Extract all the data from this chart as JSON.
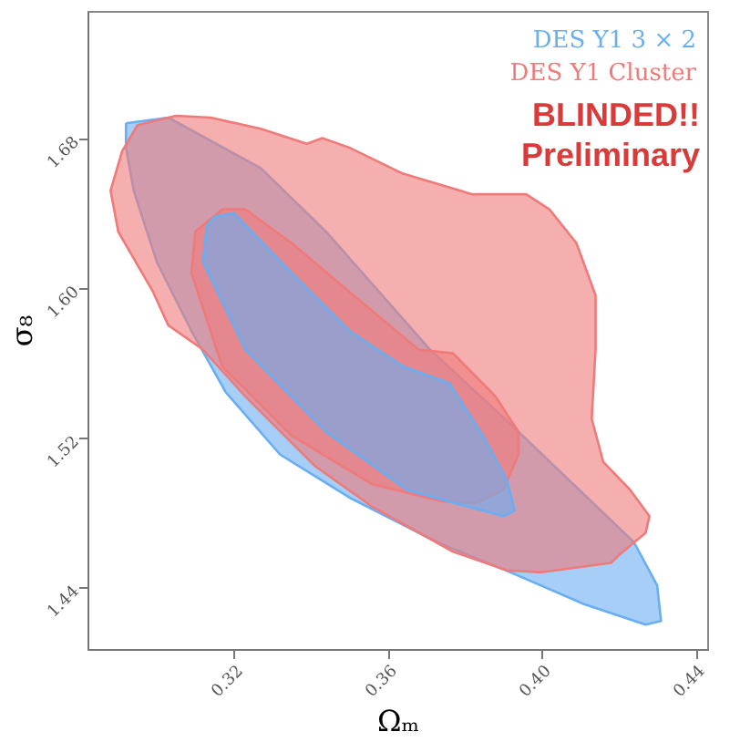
{
  "chart_data": {
    "type": "area",
    "xlabel": "Ωₘ",
    "ylabel": "σ₈",
    "xlim": [
      0.282,
      0.443
    ],
    "ylim": [
      1.407,
      1.748
    ],
    "xticks": [
      0.32,
      0.36,
      {
        "value": 0.4,
        "label": "0.40"
      },
      0.44
    ],
    "yticks": [
      1.44,
      1.52,
      {
        "value": 1.6,
        "label": "1.60"
      },
      1.68
    ],
    "legend": "top right",
    "annotations": [
      "BLINDED!!",
      "Preliminary"
    ],
    "series": [
      {
        "name": "DES Y1 3 × 2",
        "color": "#6aaef2",
        "x": [
          0.292,
          0.303,
          0.327,
          0.344,
          0.371,
          0.392,
          0.424,
          0.43,
          0.431,
          0.427,
          0.411,
          0.393,
          0.373,
          0.35,
          0.332,
          0.318,
          0.309,
          0.3,
          0.294,
          0.292,
          0.292
        ],
        "values": [
          1.688,
          1.691,
          1.664,
          1.63,
          1.567,
          1.527,
          1.464,
          1.441,
          1.422,
          1.42,
          1.431,
          1.447,
          1.464,
          1.488,
          1.511,
          1.544,
          1.577,
          1.614,
          1.652,
          1.675,
          1.688
        ]
      },
      {
        "name": "DES Y1 Cluster",
        "color": "#f07a7a",
        "x": [
          0.305,
          0.314,
          0.327,
          0.339,
          0.343,
          0.35,
          0.364,
          0.382,
          0.396,
          0.402,
          0.409,
          0.414,
          0.414,
          0.413,
          0.416,
          0.423,
          0.428,
          0.427,
          0.424,
          0.42,
          0.418,
          0.4,
          0.391,
          0.377,
          0.356,
          0.341,
          0.323,
          0.312,
          0.303,
          0.299,
          0.29,
          0.288,
          0.291,
          0.295,
          0.305
        ],
        "values": [
          1.692,
          1.691,
          1.685,
          1.677,
          1.68,
          1.675,
          1.661,
          1.65,
          1.65,
          1.642,
          1.624,
          1.596,
          1.567,
          1.53,
          1.507,
          1.492,
          1.478,
          1.469,
          1.464,
          1.457,
          1.453,
          1.448,
          1.449,
          1.459,
          1.483,
          1.505,
          1.542,
          1.567,
          1.58,
          1.598,
          1.63,
          1.652,
          1.673,
          1.687,
          1.692
        ]
      },
      {
        "color": "#f07a7a",
        "x": [
          0.317,
          0.323,
          0.335,
          0.35,
          0.368,
          0.377,
          0.388,
          0.394,
          0.394,
          0.39,
          0.383,
          0.374,
          0.356,
          0.335,
          0.317,
          0.309,
          0.31,
          0.317
        ],
        "values": [
          1.642,
          1.642,
          1.624,
          1.598,
          1.567,
          1.565,
          1.542,
          1.523,
          1.511,
          1.492,
          1.485,
          1.486,
          1.495,
          1.521,
          1.558,
          1.608,
          1.63,
          1.642
        ]
      },
      {
        "color": "#6aaef2",
        "x": [
          0.315,
          0.32,
          0.335,
          0.35,
          0.364,
          0.376,
          0.385,
          0.391,
          0.393,
          0.39,
          0.365,
          0.344,
          0.323,
          0.312,
          0.313,
          0.315
        ],
        "values": [
          1.638,
          1.64,
          1.608,
          1.577,
          1.558,
          1.549,
          1.52,
          1.497,
          1.481,
          1.478,
          1.492,
          1.523,
          1.567,
          1.614,
          1.633,
          1.638
        ]
      }
    ]
  }
}
